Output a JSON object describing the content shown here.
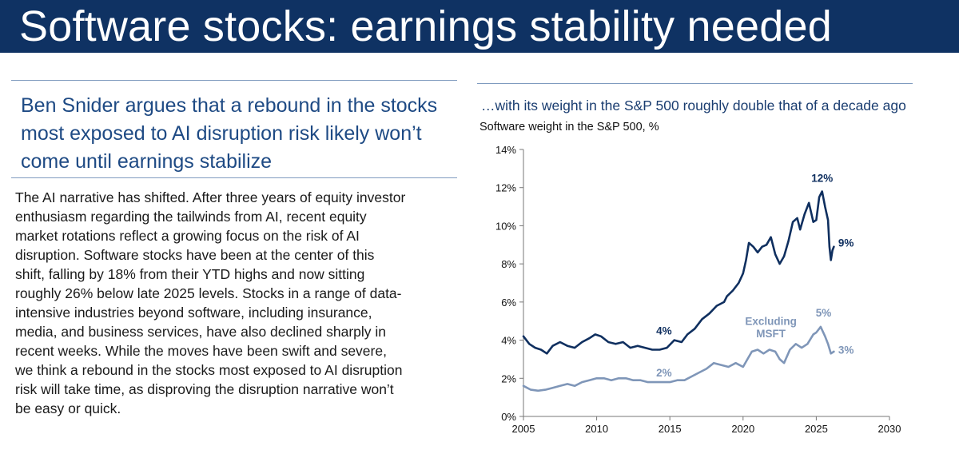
{
  "banner": {
    "title": "Software stocks: earnings stability needed"
  },
  "article": {
    "subhead": "Ben Snider argues that a rebound in the stocks most exposed to AI disruption risk likely won’t come until earnings stabilize",
    "body": "The AI narrative has shifted. After three years of equity investor\nenthusiasm regarding the tailwinds from AI, recent equity\nmarket rotations reflect a growing focus on the risk of AI\ndisruption. Software stocks have been at the center of this\nshift, falling by 18% from their YTD highs and now sitting\nroughly 26% below late 2025 levels. Stocks in a range of data-\nintensive industries beyond software, including insurance,\nmedia, and business services, have also declined sharply in\nrecent weeks. While the moves have been swift and severe,\nwe think a rebound in the stocks most exposed to AI disruption\nrisk will take time, as disproving the disruption narrative won’t\nbe easy or quick."
  },
  "colors": {
    "banner": "#0f3263",
    "series_main": "#0f2f5f",
    "series_ex": "#7f96b8"
  },
  "chart_data": {
    "type": "line",
    "headline": "…with its weight in the S&P 500 roughly double that of a decade ago",
    "title": "Software weight in the S&P 500, %",
    "xlabel": "",
    "ylabel": "",
    "xlim": [
      2005,
      2030
    ],
    "ylim": [
      0,
      14
    ],
    "xticks": [
      2005,
      2010,
      2015,
      2020,
      2025,
      2030
    ],
    "yticks": [
      0,
      2,
      4,
      6,
      8,
      10,
      12,
      14
    ],
    "ytick_suffix": "%",
    "grid": false,
    "series": [
      {
        "name": "Software",
        "color": "#0f2f5f",
        "x": [
          2005.0,
          2005.4,
          2005.8,
          2006.2,
          2006.6,
          2007.0,
          2007.5,
          2008.0,
          2008.5,
          2009.0,
          2009.5,
          2009.9,
          2010.3,
          2010.8,
          2011.3,
          2011.8,
          2012.3,
          2012.8,
          2013.3,
          2013.8,
          2014.3,
          2014.8,
          2015.3,
          2015.8,
          2016.2,
          2016.7,
          2017.2,
          2017.7,
          2018.2,
          2018.7,
          2018.9,
          2019.3,
          2019.7,
          2020.0,
          2020.2,
          2020.4,
          2020.7,
          2021.0,
          2021.3,
          2021.6,
          2021.9,
          2022.2,
          2022.5,
          2022.8,
          2023.1,
          2023.4,
          2023.7,
          2023.9,
          2024.2,
          2024.5,
          2024.8,
          2025.0,
          2025.2,
          2025.4,
          2025.6,
          2025.8,
          2025.9,
          2026.0,
          2026.1,
          2026.2
        ],
        "y": [
          4.2,
          3.8,
          3.6,
          3.5,
          3.3,
          3.7,
          3.9,
          3.7,
          3.6,
          3.9,
          4.1,
          4.3,
          4.2,
          3.9,
          3.8,
          3.9,
          3.6,
          3.7,
          3.6,
          3.5,
          3.5,
          3.6,
          4.0,
          3.9,
          4.3,
          4.6,
          5.1,
          5.4,
          5.8,
          6.0,
          6.3,
          6.6,
          7.0,
          7.5,
          8.2,
          9.1,
          8.9,
          8.6,
          8.9,
          9.0,
          9.4,
          8.5,
          8.0,
          8.4,
          9.2,
          10.2,
          10.4,
          9.8,
          10.6,
          11.2,
          10.2,
          10.3,
          11.5,
          11.8,
          11.0,
          10.3,
          8.9,
          8.2,
          8.7,
          8.9
        ]
      },
      {
        "name": "Excluding MSFT",
        "color": "#7f96b8",
        "x": [
          2005.0,
          2005.5,
          2006.0,
          2006.5,
          2007.0,
          2007.5,
          2008.0,
          2008.5,
          2009.0,
          2009.5,
          2010.0,
          2010.5,
          2011.0,
          2011.5,
          2012.0,
          2012.5,
          2013.0,
          2013.5,
          2014.0,
          2014.5,
          2015.0,
          2015.5,
          2016.0,
          2016.5,
          2017.0,
          2017.5,
          2018.0,
          2018.5,
          2019.0,
          2019.5,
          2020.0,
          2020.3,
          2020.6,
          2021.0,
          2021.4,
          2021.8,
          2022.2,
          2022.5,
          2022.8,
          2023.2,
          2023.6,
          2024.0,
          2024.4,
          2024.8,
          2025.0,
          2025.3,
          2025.6,
          2025.8,
          2026.0,
          2026.2
        ],
        "y": [
          1.6,
          1.4,
          1.35,
          1.4,
          1.5,
          1.6,
          1.7,
          1.6,
          1.8,
          1.9,
          2.0,
          2.0,
          1.9,
          2.0,
          2.0,
          1.9,
          1.9,
          1.8,
          1.8,
          1.8,
          1.8,
          1.9,
          1.9,
          2.1,
          2.3,
          2.5,
          2.8,
          2.7,
          2.6,
          2.8,
          2.6,
          3.0,
          3.4,
          3.5,
          3.3,
          3.5,
          3.4,
          3.0,
          2.8,
          3.5,
          3.8,
          3.6,
          3.8,
          4.3,
          4.4,
          4.7,
          4.2,
          3.8,
          3.3,
          3.4
        ]
      }
    ],
    "annotations": [
      {
        "text": "12%",
        "x": 2025.4,
        "y": 12.3,
        "series": "Software",
        "color": "#0f2f5f",
        "anchor": "middle"
      },
      {
        "text": "9%",
        "x": 2026.5,
        "y": 8.9,
        "series": "Software",
        "color": "#0f2f5f",
        "anchor": "start"
      },
      {
        "text": "4%",
        "x": 2014.6,
        "y": 4.3,
        "series": "Software",
        "color": "#0f2f5f",
        "anchor": "middle"
      },
      {
        "text": "Excluding",
        "x": 2021.9,
        "y": 4.8,
        "series": "Excluding MSFT",
        "color": "#7f96b8",
        "anchor": "middle"
      },
      {
        "text": "MSFT",
        "x": 2021.9,
        "y": 4.15,
        "series": "Excluding MSFT",
        "color": "#7f96b8",
        "anchor": "middle"
      },
      {
        "text": "5%",
        "x": 2025.5,
        "y": 5.25,
        "series": "Excluding MSFT",
        "color": "#7f96b8",
        "anchor": "middle"
      },
      {
        "text": "3%",
        "x": 2026.5,
        "y": 3.3,
        "series": "Excluding MSFT",
        "color": "#7f96b8",
        "anchor": "start"
      },
      {
        "text": "2%",
        "x": 2014.6,
        "y": 2.1,
        "series": "Excluding MSFT",
        "color": "#7f96b8",
        "anchor": "middle"
      }
    ]
  }
}
